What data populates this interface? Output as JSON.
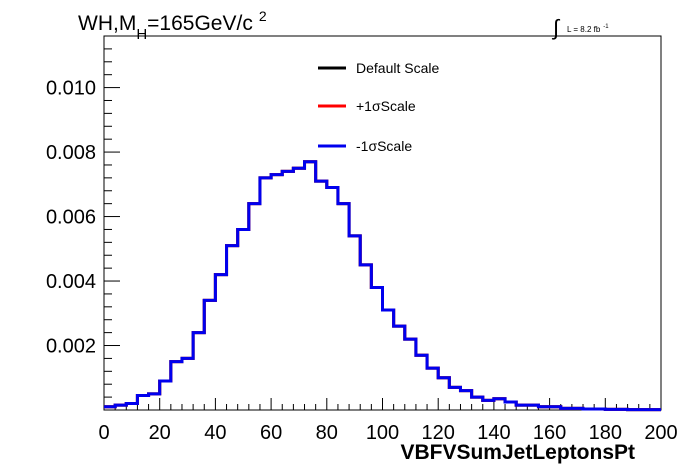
{
  "title": {
    "main": "WH,M",
    "subscript": "H",
    "rest": "=165GeV/c",
    "superscript": "2"
  },
  "lumi": {
    "integral": "∫",
    "text": "L = 8.2 fb",
    "superscript": "-1"
  },
  "colors": {
    "default": "#000000",
    "plus": "#ff0000",
    "minus": "#0000ee"
  },
  "chart_data": {
    "type": "line",
    "style": "step-histogram",
    "xlabel": "VBFVSumJetLeptonsPt",
    "ylabel": "",
    "xlim": [
      0,
      200
    ],
    "ylim": [
      0,
      0.0116
    ],
    "x_ticks": [
      0,
      20,
      40,
      60,
      80,
      100,
      120,
      140,
      160,
      180,
      200
    ],
    "y_ticks": [
      0.002,
      0.004,
      0.006,
      0.008,
      0.01
    ],
    "y_tick_labels": [
      "0.002",
      "0.004",
      "0.006",
      "0.008",
      "0.010"
    ],
    "bin_width": 4,
    "bin_edges_start": 0,
    "legend": {
      "placement": "top-center",
      "entries": [
        "Default Scale",
        "+1σScale",
        "-1σScale"
      ]
    },
    "series": [
      {
        "name": "Default Scale",
        "values": [
          0.0001,
          0.00015,
          0.0002,
          0.00045,
          0.0005,
          0.0009,
          0.0015,
          0.0016,
          0.0024,
          0.0034,
          0.0042,
          0.0051,
          0.0056,
          0.0064,
          0.0072,
          0.0073,
          0.0074,
          0.0075,
          0.0077,
          0.0071,
          0.0069,
          0.0064,
          0.0054,
          0.0045,
          0.0038,
          0.0031,
          0.0026,
          0.0022,
          0.0017,
          0.0013,
          0.001,
          0.0007,
          0.0006,
          0.0004,
          0.0003,
          0.00035,
          0.00025,
          0.00015,
          0.00015,
          0.0001,
          0.0001,
          5e-05,
          5e-05,
          3e-05,
          3e-05,
          2e-05,
          2e-05,
          1e-05,
          1e-05,
          1e-05
        ]
      },
      {
        "name": "+1σScale",
        "values": [
          0.0001,
          0.00015,
          0.0002,
          0.00045,
          0.0005,
          0.0009,
          0.0015,
          0.0016,
          0.0024,
          0.0034,
          0.0042,
          0.0051,
          0.0056,
          0.0064,
          0.0072,
          0.0073,
          0.0074,
          0.0075,
          0.0077,
          0.0071,
          0.0069,
          0.0064,
          0.0054,
          0.0045,
          0.0038,
          0.0031,
          0.0026,
          0.0022,
          0.0017,
          0.0013,
          0.001,
          0.0007,
          0.0006,
          0.0004,
          0.0003,
          0.00035,
          0.00025,
          0.00015,
          0.00015,
          0.0001,
          0.0001,
          5e-05,
          5e-05,
          3e-05,
          3e-05,
          2e-05,
          2e-05,
          1e-05,
          1e-05,
          1e-05
        ]
      },
      {
        "name": "-1σScale",
        "values": [
          0.0001,
          0.00015,
          0.0002,
          0.00045,
          0.0005,
          0.0009,
          0.0015,
          0.0016,
          0.0024,
          0.0034,
          0.0042,
          0.0051,
          0.0056,
          0.0064,
          0.0072,
          0.0073,
          0.0074,
          0.0075,
          0.0077,
          0.0071,
          0.0069,
          0.0064,
          0.0054,
          0.0045,
          0.0038,
          0.0031,
          0.0026,
          0.0022,
          0.0017,
          0.0013,
          0.001,
          0.0007,
          0.0006,
          0.0004,
          0.0003,
          0.00035,
          0.00025,
          0.00015,
          0.00015,
          0.0001,
          0.0001,
          5e-05,
          5e-05,
          3e-05,
          3e-05,
          2e-05,
          2e-05,
          1e-05,
          1e-05,
          1e-05
        ]
      }
    ]
  }
}
